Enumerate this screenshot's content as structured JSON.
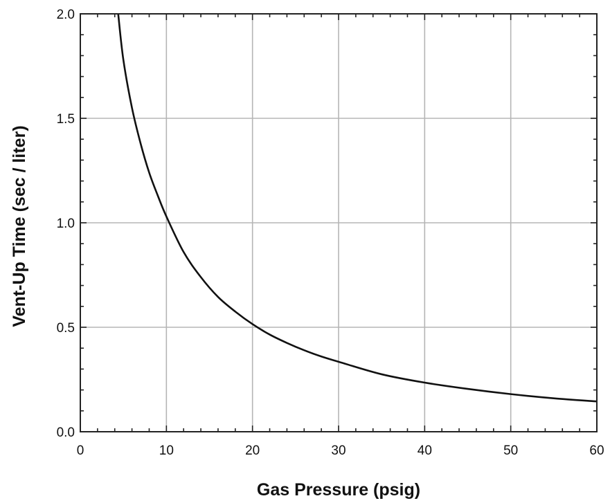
{
  "chart_data": {
    "type": "line",
    "title": "",
    "xlabel": "Gas Pressure (psig)",
    "ylabel": "Vent-Up Time (sec / liter)",
    "xlim": [
      0,
      60
    ],
    "ylim": [
      0,
      2.0
    ],
    "x_ticks": [
      0,
      10,
      20,
      30,
      40,
      50,
      60
    ],
    "x_tick_labels": [
      "0",
      "10",
      "20",
      "30",
      "40",
      "50",
      "60"
    ],
    "y_ticks": [
      0,
      0.5,
      1.0,
      1.5,
      2.0
    ],
    "y_tick_labels": [
      "0.0",
      "0.5",
      "1.0",
      "1.5",
      "2.0"
    ],
    "x_minor_step": 2,
    "y_minor_step": 0.1,
    "grid": true,
    "legend": "none",
    "colors": {
      "line": "#111111",
      "grid": "#b5b5b5",
      "frame": "#222222"
    },
    "series": [
      {
        "x": [
          4.4,
          5,
          6,
          7,
          8,
          9,
          10,
          12,
          14,
          16,
          18,
          20,
          22,
          24,
          26,
          28,
          30,
          35,
          40,
          45,
          50,
          55,
          60
        ],
        "y": [
          2.0,
          1.78,
          1.55,
          1.38,
          1.24,
          1.13,
          1.03,
          0.86,
          0.74,
          0.645,
          0.575,
          0.515,
          0.465,
          0.425,
          0.39,
          0.36,
          0.335,
          0.275,
          0.235,
          0.205,
          0.18,
          0.16,
          0.145
        ]
      }
    ]
  }
}
